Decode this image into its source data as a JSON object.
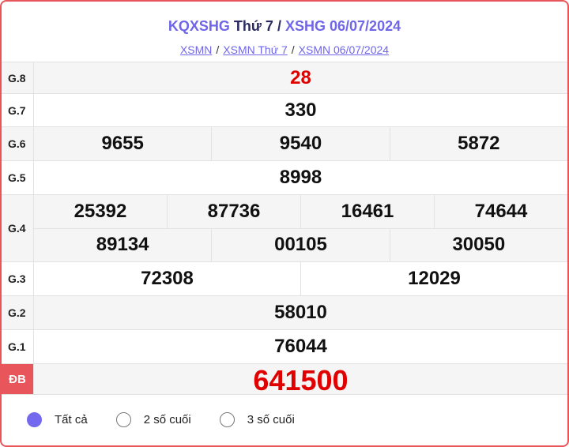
{
  "header": {
    "title_a": "KQXSHG",
    "title_b": "Thứ 7",
    "title_sep": "/",
    "title_c": "XSHG 06/07/2024",
    "breadcrumbs": [
      "XSMN",
      "XSMN Thứ 7",
      "XSMN 06/07/2024"
    ],
    "sep": "/"
  },
  "results": {
    "g8": {
      "label": "G.8",
      "values": [
        "28"
      ]
    },
    "g7": {
      "label": "G.7",
      "values": [
        "330"
      ]
    },
    "g6": {
      "label": "G.6",
      "values": [
        "9655",
        "9540",
        "5872"
      ]
    },
    "g5": {
      "label": "G.5",
      "values": [
        "8998"
      ]
    },
    "g4": {
      "label": "G.4",
      "values": [
        "25392",
        "87736",
        "16461",
        "74644",
        "89134",
        "00105",
        "30050"
      ]
    },
    "g3": {
      "label": "G.3",
      "values": [
        "72308",
        "12029"
      ]
    },
    "g2": {
      "label": "G.2",
      "values": [
        "58010"
      ]
    },
    "g1": {
      "label": "G.1",
      "values": [
        "76044"
      ]
    },
    "db": {
      "label": "ĐB",
      "values": [
        "641500"
      ]
    }
  },
  "filter": {
    "options": [
      "Tất cả",
      "2 số cuối",
      "3 số cuối"
    ],
    "selected": "Tất cả"
  },
  "colors": {
    "accent": "#6f66e8",
    "special": "#e00000",
    "border": "#e8555a"
  }
}
